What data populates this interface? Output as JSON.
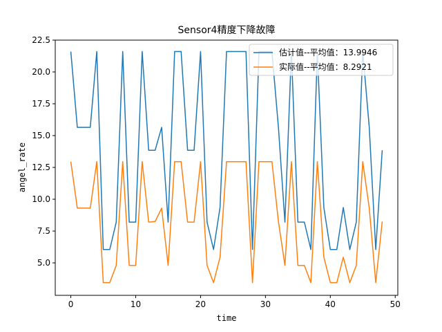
{
  "chart_data": {
    "type": "line",
    "title": "Sensor4精度下降故障",
    "xlabel": "time",
    "ylabel": "angel_rate",
    "xlim": [
      -2.4,
      50.4
    ],
    "ylim": [
      2.45,
      22.5
    ],
    "xticks": [
      0,
      10,
      20,
      30,
      40,
      50
    ],
    "yticks": [
      5.0,
      7.5,
      10.0,
      12.5,
      15.0,
      17.5,
      20.0,
      22.5
    ],
    "xtick_labels": [
      "0",
      "10",
      "20",
      "30",
      "40",
      "50"
    ],
    "ytick_labels": [
      "5.0",
      "7.5",
      "10.0",
      "12.5",
      "15.0",
      "17.5",
      "20.0",
      "22.5"
    ],
    "legend_position": "top-right",
    "grid": false,
    "x": [
      0,
      1,
      2,
      3,
      4,
      5,
      6,
      7,
      8,
      9,
      10,
      11,
      12,
      13,
      14,
      15,
      16,
      17,
      18,
      19,
      20,
      21,
      22,
      23,
      24,
      25,
      26,
      27,
      28,
      29,
      30,
      31,
      32,
      33,
      34,
      35,
      36,
      37,
      38,
      39,
      40,
      41,
      42,
      43,
      44,
      45,
      46,
      47,
      48
    ],
    "series": [
      {
        "name": "估计值--平均值：13.9946",
        "color": "#1f77b4",
        "values": [
          21.6,
          15.65,
          15.65,
          15.65,
          21.6,
          6.05,
          6.05,
          8.2,
          21.6,
          8.2,
          8.2,
          21.6,
          13.85,
          13.85,
          15.65,
          8.2,
          21.6,
          21.6,
          13.85,
          13.85,
          21.6,
          8.2,
          6.05,
          9.35,
          21.6,
          21.6,
          21.6,
          21.6,
          6.05,
          21.6,
          21.6,
          21.6,
          15.65,
          8.2,
          21.6,
          8.2,
          8.2,
          6.05,
          21.6,
          9.35,
          6.05,
          6.05,
          9.35,
          6.05,
          8.2,
          21.6,
          15.65,
          6.05,
          13.85
        ]
      },
      {
        "name": "实际值--平均值：8.2921",
        "color": "#ff7f0e",
        "values": [
          12.95,
          9.3,
          9.3,
          9.3,
          12.95,
          3.45,
          3.45,
          4.8,
          12.95,
          4.8,
          4.8,
          12.95,
          8.2,
          8.25,
          9.3,
          4.8,
          12.95,
          12.95,
          8.2,
          8.2,
          12.95,
          4.8,
          3.45,
          5.45,
          12.95,
          12.95,
          12.95,
          12.95,
          3.45,
          12.95,
          12.95,
          12.95,
          8.25,
          4.8,
          12.95,
          4.8,
          4.8,
          3.45,
          12.95,
          5.45,
          3.45,
          3.45,
          5.45,
          3.45,
          4.8,
          12.95,
          9.3,
          3.45,
          8.25
        ]
      }
    ]
  }
}
